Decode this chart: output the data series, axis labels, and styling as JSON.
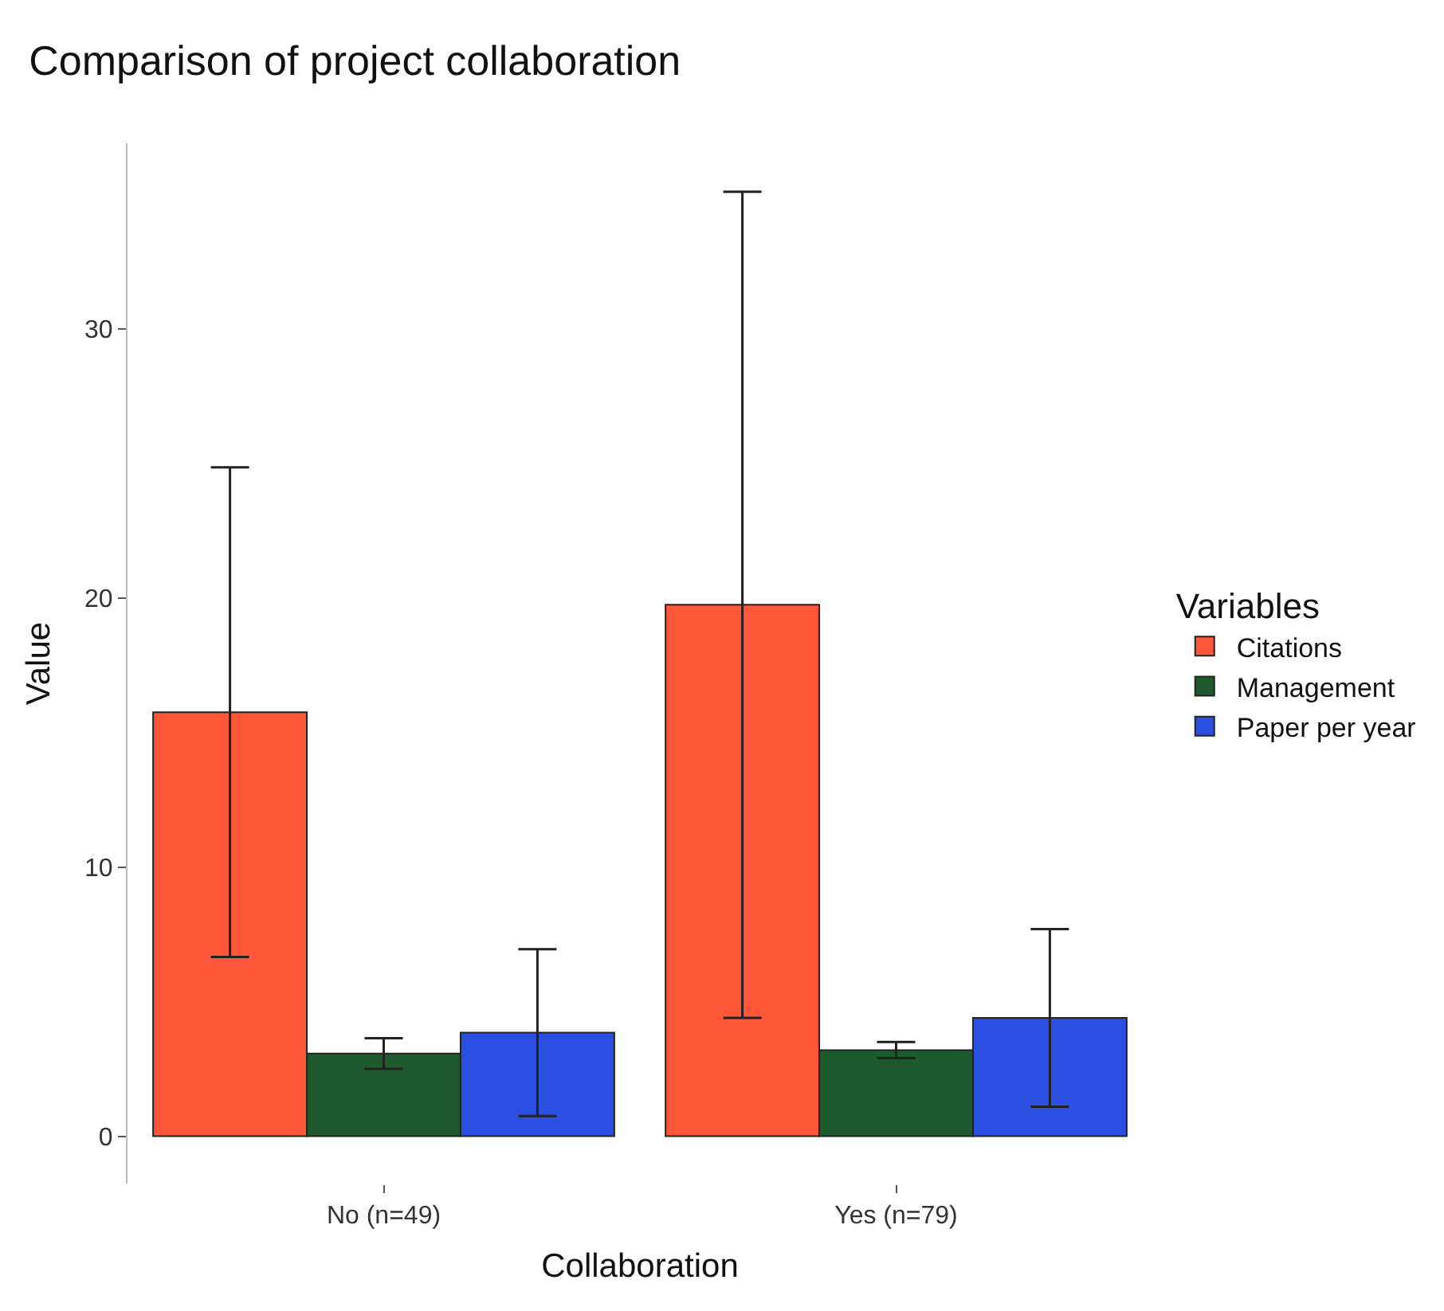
{
  "chart_data": {
    "type": "bar",
    "title": "Comparison of project collaboration",
    "xlabel": "Collaboration",
    "ylabel": "Value",
    "legend_title": "Variables",
    "categories": [
      "No (n=49)",
      "Yes (n=79)"
    ],
    "series": [
      {
        "name": "Citations",
        "color": "#fe5638",
        "values": [
          15.76,
          19.75
        ],
        "errors": [
          9.1,
          15.35
        ]
      },
      {
        "name": "Management",
        "color": "#1e5a2e",
        "values": [
          3.07,
          3.2
        ],
        "errors": [
          0.57,
          0.3
        ]
      },
      {
        "name": "Paper per year",
        "color": "#2b4fe0",
        "values": [
          3.85,
          4.4
        ],
        "errors": [
          3.1,
          3.3
        ]
      }
    ],
    "ylim": [
      -1.76,
      36.9
    ],
    "yticks": [
      0,
      10,
      20,
      30
    ],
    "legend": "right"
  }
}
